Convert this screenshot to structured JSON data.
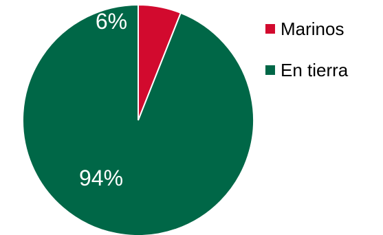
{
  "chart_data": {
    "type": "pie",
    "title": "",
    "start_angle": "12 o'clock, clockwise",
    "slices": [
      {
        "name": "Marinos",
        "value": 6,
        "label": "6%",
        "color": "#D20A2E"
      },
      {
        "name": "En tierra",
        "value": 94,
        "label": "94%",
        "color": "#006747"
      }
    ],
    "legend_position": "right",
    "slice_edge_color": "#FFFFFF"
  }
}
